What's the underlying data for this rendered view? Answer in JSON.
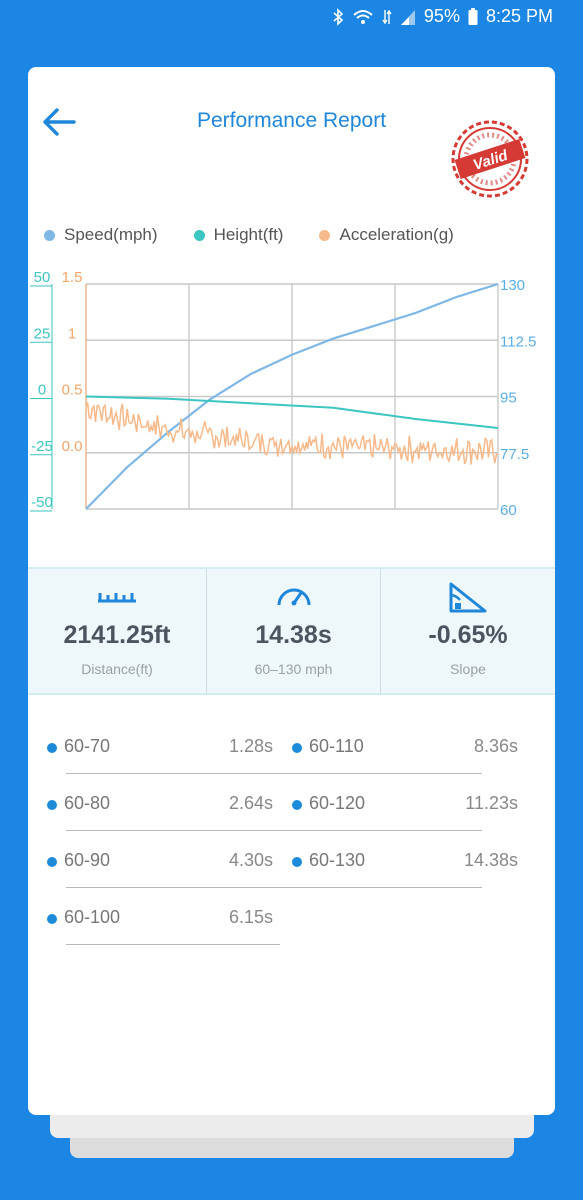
{
  "status_bar": {
    "battery": "95%",
    "time": "8:25 PM"
  },
  "header": {
    "title": "Performance Report",
    "stamp_text": "Valid"
  },
  "colors": {
    "speed": "#7fb8e6",
    "height": "#3cc6c1",
    "acceleration": "#f7b98a",
    "accent": "#1f86d9"
  },
  "chart_data": {
    "type": "line",
    "legend": [
      "Speed(mph)",
      "Height(ft)",
      "Acceleration(g)"
    ],
    "legend_placement": "top",
    "grid": true,
    "axes": {
      "left_outer": {
        "series": "Height(ft)",
        "ticks": [
          "50",
          "25",
          "0",
          "-25",
          "-50"
        ],
        "range": [
          -50,
          50
        ]
      },
      "left_inner": {
        "series": "Acceleration(g)",
        "ticks": [
          "1.5",
          "1",
          "0.5",
          "0.0"
        ],
        "range": [
          -0.5,
          1.5
        ]
      },
      "right": {
        "series": "Speed(mph)",
        "ticks": [
          "130",
          "112.5",
          "95",
          "77.5",
          "60"
        ],
        "range": [
          60,
          130
        ]
      }
    },
    "series": [
      {
        "name": "Speed(mph)",
        "x": [
          0,
          0.1,
          0.2,
          0.3,
          0.4,
          0.5,
          0.6,
          0.7,
          0.8,
          0.9,
          1.0
        ],
        "values": [
          60,
          73,
          84,
          94,
          102,
          108,
          113,
          117,
          121,
          126,
          130
        ]
      },
      {
        "name": "Height(ft)",
        "x": [
          0,
          0.2,
          0.4,
          0.6,
          0.8,
          1.0
        ],
        "values": [
          0,
          -1,
          -3,
          -5,
          -10,
          -14
        ]
      },
      {
        "name": "Acceleration(g)",
        "x": [
          0,
          0.1,
          0.2,
          0.3,
          0.4,
          0.5,
          0.6,
          0.7,
          0.8,
          0.9,
          1.0
        ],
        "values": [
          0.4,
          0.3,
          0.2,
          0.15,
          0.1,
          0.08,
          0.06,
          0.04,
          0.03,
          0.02,
          0.02
        ]
      }
    ]
  },
  "stats": [
    {
      "icon": "ruler-icon",
      "value": "2141.25ft",
      "label": "Distance(ft)"
    },
    {
      "icon": "speedometer-icon",
      "value": "14.38s",
      "label": "60–130 mph"
    },
    {
      "icon": "slope-icon",
      "value": "-0.65%",
      "label": "Slope"
    }
  ],
  "splits": [
    {
      "label": "60-70",
      "time": "1.28s"
    },
    {
      "label": "60-80",
      "time": "2.64s"
    },
    {
      "label": "60-90",
      "time": "4.30s"
    },
    {
      "label": "60-100",
      "time": "6.15s"
    },
    {
      "label": "60-110",
      "time": "8.36s"
    },
    {
      "label": "60-120",
      "time": "11.23s"
    },
    {
      "label": "60-130",
      "time": "14.38s"
    }
  ]
}
